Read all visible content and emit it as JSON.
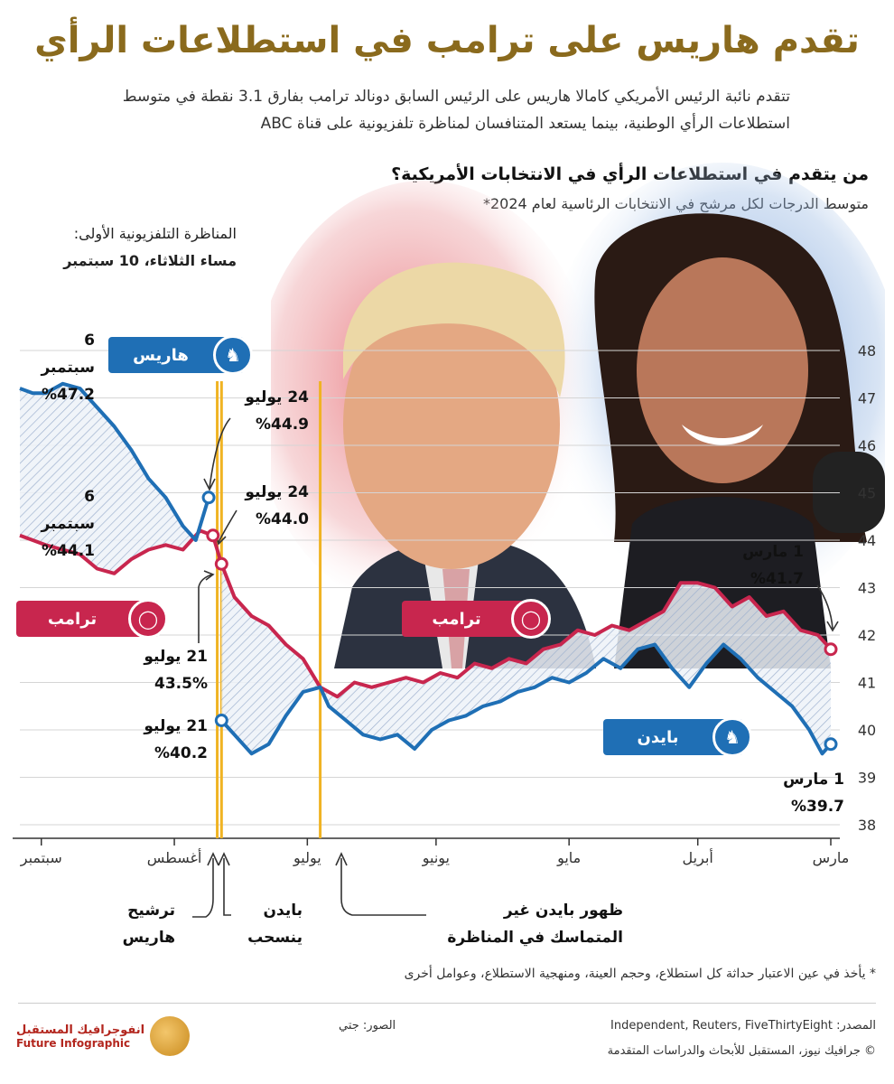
{
  "title": "تقدم هاريس على ترامب في استطلاعات الرأي",
  "subtitle": "تتقدم نائبة الرئيس الأمريكي كامالا هاريس على الرئيس السابق دونالد ترامب بفارق 3.1 نقطة في متوسط استطلاعات الرأي الوطنية، بينما يستعد المتنافسان لمناظرة تلفزيونية على قناة ABC",
  "question_title": "من يتقدم في استطلاعات الرأي في الانتخابات الأمريكية؟",
  "question_subtitle": "متوسط الدرجات لكل مرشح في الانتخابات الرئاسية لعام 2024*",
  "debate_note": {
    "line1": "المناظرة التلفزيونية الأولى:",
    "line2": "مساء الثلاثاء، 10 سبتمبر"
  },
  "badges": {
    "harris": "هاريس",
    "trump1": "ترامب",
    "trump2": "ترامب",
    "biden": "بايدن"
  },
  "point_labels": {
    "harris_sep6_date": "6 سبتمبر",
    "harris_sep6_val": "%47.2",
    "trump_sep6_date": "6 سبتمبر",
    "trump_sep6_val": "%44.1",
    "harris_jul24_date": "24 يوليو",
    "harris_jul24_val": "%44.9",
    "trump_jul24_date": "24 يوليو",
    "trump_jul24_val": "%44.0",
    "trump_jul21_date": "21 يوليو",
    "trump_jul21_val": "43.5%",
    "biden_jul21_date": "21 يوليو",
    "biden_jul21_val": "%40.2",
    "trump_mar1_date": "1 مارس",
    "trump_mar1_val": "%41.7",
    "biden_mar1_date": "1 مارس",
    "biden_mar1_val": "%39.7"
  },
  "events": {
    "harris_nom": {
      "l1": "ترشيح",
      "l2": "هاريس"
    },
    "biden_withdraw": {
      "l1": "بايدن",
      "l2": "ينسحب"
    },
    "biden_debate": {
      "l1": "ظهور بايدن غير",
      "l2": "المتماسك في المناظرة"
    }
  },
  "footnote": "* يأخذ في عين الاعتبار حداثة كل استطلاع، وحجم العينة، ومنهجية الاستطلاع، وعوامل أخرى",
  "source": "المصدر: Independent, Reuters, FiveThirtyEight",
  "photos_credit": "الصور: جتي",
  "copyright": "© جرافيك نيوز، المستقبل للأبحاث والدراسات المتقدمة",
  "logo": {
    "ar": "انفوجرافيك المستقبل",
    "en": "Future Infographic"
  },
  "colors": {
    "trump": "#c8264e",
    "biden": "#1f6fb5",
    "harris": "#1f6fb5",
    "event_line": "#f0b323",
    "axis_text": "#333333"
  },
  "chart_data": {
    "type": "line",
    "x_axis_direction": "right-to-left",
    "x_tick_labels": [
      "مارس",
      "أبريل",
      "مايو",
      "يونيو",
      "يوليو",
      "أغسطس",
      "سبتمبر"
    ],
    "x_tick_dates": [
      "2024-03-01",
      "2024-04-01",
      "2024-05-01",
      "2024-06-01",
      "2024-07-01",
      "2024-08-01",
      "2024-09-01"
    ],
    "ylim": [
      38,
      48
    ],
    "y_ticks": [
      38,
      39,
      40,
      41,
      42,
      43,
      44,
      45,
      46,
      47,
      48
    ],
    "x_range": [
      "2024-03-01",
      "2024-09-06"
    ],
    "event_dates": [
      "2024-06-28",
      "2024-07-21",
      "2024-07-22"
    ],
    "series": [
      {
        "name": "ترامب",
        "color": "#c8264e",
        "points": [
          [
            "2024-03-01",
            41.7
          ],
          [
            "2024-03-04",
            42.0
          ],
          [
            "2024-03-08",
            42.1
          ],
          [
            "2024-03-12",
            42.5
          ],
          [
            "2024-03-16",
            42.4
          ],
          [
            "2024-03-20",
            42.8
          ],
          [
            "2024-03-24",
            42.6
          ],
          [
            "2024-03-28",
            43.0
          ],
          [
            "2024-04-01",
            43.1
          ],
          [
            "2024-04-05",
            43.1
          ],
          [
            "2024-04-09",
            42.5
          ],
          [
            "2024-04-13",
            42.3
          ],
          [
            "2024-04-17",
            42.1
          ],
          [
            "2024-04-21",
            42.2
          ],
          [
            "2024-04-25",
            42.0
          ],
          [
            "2024-04-29",
            42.1
          ],
          [
            "2024-05-03",
            41.8
          ],
          [
            "2024-05-07",
            41.7
          ],
          [
            "2024-05-11",
            41.4
          ],
          [
            "2024-05-15",
            41.5
          ],
          [
            "2024-05-19",
            41.3
          ],
          [
            "2024-05-23",
            41.4
          ],
          [
            "2024-05-27",
            41.1
          ],
          [
            "2024-05-31",
            41.2
          ],
          [
            "2024-06-04",
            41.0
          ],
          [
            "2024-06-08",
            41.1
          ],
          [
            "2024-06-12",
            41.0
          ],
          [
            "2024-06-16",
            40.9
          ],
          [
            "2024-06-20",
            41.0
          ],
          [
            "2024-06-24",
            40.7
          ],
          [
            "2024-06-28",
            40.9
          ],
          [
            "2024-07-02",
            41.5
          ],
          [
            "2024-07-06",
            41.8
          ],
          [
            "2024-07-10",
            42.2
          ],
          [
            "2024-07-14",
            42.4
          ],
          [
            "2024-07-18",
            42.8
          ],
          [
            "2024-07-21",
            43.5
          ],
          [
            "2024-07-23",
            44.1
          ],
          [
            "2024-07-26",
            44.2
          ],
          [
            "2024-07-30",
            43.8
          ],
          [
            "2024-08-03",
            43.9
          ],
          [
            "2024-08-07",
            43.8
          ],
          [
            "2024-08-11",
            43.6
          ],
          [
            "2024-08-15",
            43.3
          ],
          [
            "2024-08-19",
            43.4
          ],
          [
            "2024-08-23",
            43.7
          ],
          [
            "2024-08-27",
            43.8
          ],
          [
            "2024-08-31",
            43.9
          ],
          [
            "2024-09-03",
            44.0
          ],
          [
            "2024-09-06",
            44.1
          ]
        ]
      },
      {
        "name": "بايدن",
        "color": "#1f6fb5",
        "points": [
          [
            "2024-03-01",
            39.7
          ],
          [
            "2024-03-03",
            39.5
          ],
          [
            "2024-03-06",
            40.0
          ],
          [
            "2024-03-10",
            40.5
          ],
          [
            "2024-03-14",
            40.8
          ],
          [
            "2024-03-18",
            41.1
          ],
          [
            "2024-03-22",
            41.5
          ],
          [
            "2024-03-26",
            41.8
          ],
          [
            "2024-03-30",
            41.4
          ],
          [
            "2024-04-03",
            40.9
          ],
          [
            "2024-04-07",
            41.3
          ],
          [
            "2024-04-11",
            41.8
          ],
          [
            "2024-04-15",
            41.7
          ],
          [
            "2024-04-19",
            41.3
          ],
          [
            "2024-04-23",
            41.5
          ],
          [
            "2024-04-27",
            41.2
          ],
          [
            "2024-05-01",
            41.0
          ],
          [
            "2024-05-05",
            41.1
          ],
          [
            "2024-05-09",
            40.9
          ],
          [
            "2024-05-13",
            40.8
          ],
          [
            "2024-05-17",
            40.6
          ],
          [
            "2024-05-21",
            40.5
          ],
          [
            "2024-05-25",
            40.3
          ],
          [
            "2024-05-29",
            40.2
          ],
          [
            "2024-06-02",
            40.0
          ],
          [
            "2024-06-06",
            39.6
          ],
          [
            "2024-06-10",
            39.9
          ],
          [
            "2024-06-14",
            39.8
          ],
          [
            "2024-06-18",
            39.9
          ],
          [
            "2024-06-22",
            40.2
          ],
          [
            "2024-06-26",
            40.5
          ],
          [
            "2024-06-28",
            40.9
          ],
          [
            "2024-07-02",
            40.8
          ],
          [
            "2024-07-06",
            40.3
          ],
          [
            "2024-07-10",
            39.7
          ],
          [
            "2024-07-14",
            39.5
          ],
          [
            "2024-07-18",
            39.9
          ],
          [
            "2024-07-21",
            40.2
          ]
        ]
      },
      {
        "name": "هاريس",
        "color": "#1f6fb5",
        "points": [
          [
            "2024-07-24",
            44.9
          ],
          [
            "2024-07-27",
            44.0
          ],
          [
            "2024-07-30",
            44.3
          ],
          [
            "2024-08-03",
            44.9
          ],
          [
            "2024-08-07",
            45.3
          ],
          [
            "2024-08-11",
            45.9
          ],
          [
            "2024-08-15",
            46.4
          ],
          [
            "2024-08-19",
            46.8
          ],
          [
            "2024-08-23",
            47.2
          ],
          [
            "2024-08-27",
            47.3
          ],
          [
            "2024-08-31",
            47.1
          ],
          [
            "2024-09-03",
            47.1
          ],
          [
            "2024-09-06",
            47.2
          ]
        ]
      }
    ]
  }
}
